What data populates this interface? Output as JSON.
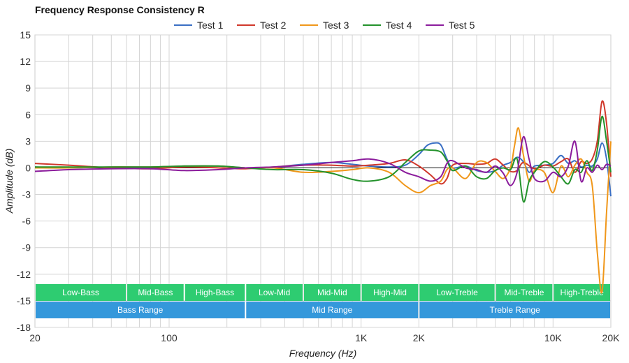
{
  "chart_data": {
    "type": "line",
    "title": "Frequency Response Consistency R",
    "xlabel": "Frequency (Hz)",
    "ylabel": "Amplitude (dB)",
    "x_scale": "log",
    "xlim": [
      20,
      20000
    ],
    "ylim": [
      -18,
      15
    ],
    "x_ticks": [
      {
        "value": 20,
        "label": "20"
      },
      {
        "value": 100,
        "label": "100"
      },
      {
        "value": 1000,
        "label": "1K"
      },
      {
        "value": 2000,
        "label": "2K"
      },
      {
        "value": 10000,
        "label": "10K"
      },
      {
        "value": 20000,
        "label": "20K"
      }
    ],
    "y_ticks": [
      15,
      12,
      9,
      6,
      3,
      0,
      -3,
      -6,
      -9,
      -12,
      -15,
      -18
    ],
    "grid": true,
    "legend_position": "top",
    "ranges_top": [
      {
        "label": "Low-Bass",
        "from": 20,
        "to": 60
      },
      {
        "label": "Mid-Bass",
        "from": 60,
        "to": 120
      },
      {
        "label": "High-Bass",
        "from": 120,
        "to": 250
      },
      {
        "label": "Low-Mid",
        "from": 250,
        "to": 500
      },
      {
        "label": "Mid-Mid",
        "from": 500,
        "to": 1000
      },
      {
        "label": "High-Mid",
        "from": 1000,
        "to": 2000
      },
      {
        "label": "Low-Treble",
        "from": 2000,
        "to": 5000
      },
      {
        "label": "Mid-Treble",
        "from": 5000,
        "to": 10000
      },
      {
        "label": "High-Treble",
        "from": 10000,
        "to": 20000
      }
    ],
    "ranges_bottom": [
      {
        "label": "Bass Range",
        "from": 20,
        "to": 250
      },
      {
        "label": "Mid Range",
        "from": 250,
        "to": 2000
      },
      {
        "label": "Treble Range",
        "from": 2000,
        "to": 20000
      }
    ],
    "series": [
      {
        "name": "Test 1",
        "color": "#3a6fc4",
        "points": [
          [
            20,
            0.1
          ],
          [
            30,
            0.0
          ],
          [
            50,
            0.1
          ],
          [
            80,
            0.1
          ],
          [
            120,
            0.2
          ],
          [
            180,
            0.2
          ],
          [
            250,
            0.0
          ],
          [
            350,
            0.1
          ],
          [
            500,
            0.4
          ],
          [
            700,
            0.6
          ],
          [
            900,
            0.4
          ],
          [
            1100,
            0.2
          ],
          [
            1400,
            0.1
          ],
          [
            1700,
            0.3
          ],
          [
            2000,
            1.5
          ],
          [
            2200,
            2.5
          ],
          [
            2400,
            2.8
          ],
          [
            2600,
            2.6
          ],
          [
            2800,
            1.0
          ],
          [
            3000,
            0.0
          ],
          [
            3500,
            0.2
          ],
          [
            4000,
            -0.3
          ],
          [
            4500,
            -0.5
          ],
          [
            5000,
            -0.3
          ],
          [
            5500,
            0.3
          ],
          [
            6000,
            0.6
          ],
          [
            6500,
            1.2
          ],
          [
            7000,
            0.7
          ],
          [
            7500,
            -0.5
          ],
          [
            8000,
            0.2
          ],
          [
            9000,
            0.3
          ],
          [
            10000,
            0.5
          ],
          [
            11000,
            1.4
          ],
          [
            12000,
            0.5
          ],
          [
            13000,
            0.8
          ],
          [
            14000,
            0.1
          ],
          [
            15000,
            0.3
          ],
          [
            16000,
            0.2
          ],
          [
            17000,
            1.0
          ],
          [
            18000,
            2.8
          ],
          [
            19000,
            1.0
          ],
          [
            20000,
            -3.2
          ]
        ]
      },
      {
        "name": "Test 2",
        "color": "#d0382b",
        "points": [
          [
            20,
            0.5
          ],
          [
            30,
            0.3
          ],
          [
            50,
            0.0
          ],
          [
            80,
            -0.1
          ],
          [
            120,
            0.1
          ],
          [
            180,
            0.0
          ],
          [
            250,
            -0.1
          ],
          [
            350,
            0.1
          ],
          [
            500,
            0.3
          ],
          [
            700,
            0.3
          ],
          [
            900,
            0.2
          ],
          [
            1100,
            0.3
          ],
          [
            1400,
            0.5
          ],
          [
            1700,
            0.9
          ],
          [
            2000,
            0.2
          ],
          [
            2300,
            -0.8
          ],
          [
            2600,
            -1.8
          ],
          [
            2800,
            -1.2
          ],
          [
            3000,
            0.3
          ],
          [
            3500,
            0.5
          ],
          [
            4000,
            0.4
          ],
          [
            4500,
            0.5
          ],
          [
            5000,
            1.0
          ],
          [
            5500,
            0.3
          ],
          [
            6000,
            -0.4
          ],
          [
            6500,
            -0.3
          ],
          [
            7000,
            0.6
          ],
          [
            8000,
            -0.1
          ],
          [
            9000,
            0.3
          ],
          [
            10000,
            0.2
          ],
          [
            11000,
            0.7
          ],
          [
            12000,
            1.0
          ],
          [
            13000,
            -0.5
          ],
          [
            14000,
            0.7
          ],
          [
            15000,
            0.5
          ],
          [
            16000,
            1.0
          ],
          [
            17000,
            3.0
          ],
          [
            18000,
            7.5
          ],
          [
            19000,
            5.0
          ],
          [
            20000,
            -1.0
          ]
        ]
      },
      {
        "name": "Test 3",
        "color": "#f0971a",
        "points": [
          [
            20,
            0.0
          ],
          [
            30,
            0.0
          ],
          [
            50,
            0.1
          ],
          [
            80,
            0.1
          ],
          [
            120,
            0.2
          ],
          [
            180,
            0.2
          ],
          [
            250,
            0.0
          ],
          [
            350,
            0.0
          ],
          [
            500,
            -0.5
          ],
          [
            700,
            -0.4
          ],
          [
            900,
            -0.2
          ],
          [
            1100,
            0.0
          ],
          [
            1400,
            -0.5
          ],
          [
            1700,
            -2.0
          ],
          [
            2000,
            -2.8
          ],
          [
            2300,
            -2.0
          ],
          [
            2600,
            -1.5
          ],
          [
            2800,
            -0.2
          ],
          [
            3000,
            0.0
          ],
          [
            3500,
            -1.2
          ],
          [
            4000,
            0.6
          ],
          [
            4500,
            0.6
          ],
          [
            5000,
            -0.4
          ],
          [
            5500,
            -1.2
          ],
          [
            6000,
            0.0
          ],
          [
            6300,
            2.5
          ],
          [
            6600,
            4.5
          ],
          [
            7000,
            1.5
          ],
          [
            7500,
            -1.5
          ],
          [
            8000,
            -0.3
          ],
          [
            9000,
            -0.5
          ],
          [
            10000,
            -2.8
          ],
          [
            11000,
            0.2
          ],
          [
            12000,
            -1.0
          ],
          [
            13000,
            0.3
          ],
          [
            14000,
            1.0
          ],
          [
            15000,
            -0.5
          ],
          [
            16000,
            -2.0
          ],
          [
            17000,
            -9.5
          ],
          [
            18000,
            -14.0
          ],
          [
            19000,
            -5.0
          ],
          [
            20000,
            3.0
          ]
        ]
      },
      {
        "name": "Test 4",
        "color": "#23922b",
        "points": [
          [
            20,
            0.1
          ],
          [
            30,
            0.1
          ],
          [
            50,
            0.1
          ],
          [
            80,
            0.1
          ],
          [
            120,
            0.2
          ],
          [
            180,
            0.2
          ],
          [
            250,
            0.0
          ],
          [
            350,
            -0.2
          ],
          [
            500,
            -0.2
          ],
          [
            700,
            -0.6
          ],
          [
            900,
            -1.3
          ],
          [
            1100,
            -1.5
          ],
          [
            1400,
            -1.0
          ],
          [
            1700,
            0.6
          ],
          [
            2000,
            1.9
          ],
          [
            2300,
            2.0
          ],
          [
            2600,
            1.8
          ],
          [
            2800,
            0.8
          ],
          [
            3000,
            -0.3
          ],
          [
            3500,
            0.2
          ],
          [
            4000,
            -1.0
          ],
          [
            4500,
            -1.2
          ],
          [
            5000,
            -0.3
          ],
          [
            5500,
            0.0
          ],
          [
            6000,
            -0.2
          ],
          [
            6500,
            1.0
          ],
          [
            7000,
            -3.8
          ],
          [
            7500,
            -1.5
          ],
          [
            8000,
            -0.5
          ],
          [
            9000,
            0.7
          ],
          [
            10000,
            0.1
          ],
          [
            11000,
            -1.0
          ],
          [
            12000,
            -1.8
          ],
          [
            13000,
            -0.2
          ],
          [
            14000,
            -0.5
          ],
          [
            15000,
            0.8
          ],
          [
            16000,
            -0.3
          ],
          [
            17000,
            2.0
          ],
          [
            18000,
            5.8
          ],
          [
            19000,
            3.0
          ],
          [
            20000,
            -0.5
          ]
        ]
      },
      {
        "name": "Test 5",
        "color": "#8b1c9c",
        "points": [
          [
            20,
            -0.4
          ],
          [
            30,
            -0.2
          ],
          [
            50,
            -0.1
          ],
          [
            80,
            -0.1
          ],
          [
            120,
            -0.3
          ],
          [
            180,
            -0.2
          ],
          [
            250,
            0.0
          ],
          [
            350,
            0.1
          ],
          [
            500,
            0.3
          ],
          [
            700,
            0.6
          ],
          [
            900,
            0.8
          ],
          [
            1100,
            1.0
          ],
          [
            1400,
            0.5
          ],
          [
            1700,
            -0.5
          ],
          [
            2000,
            -1.0
          ],
          [
            2300,
            -1.5
          ],
          [
            2600,
            -1.0
          ],
          [
            2800,
            0.5
          ],
          [
            3000,
            0.8
          ],
          [
            3500,
            0.0
          ],
          [
            4000,
            -0.2
          ],
          [
            4500,
            -0.5
          ],
          [
            5000,
            0.2
          ],
          [
            5500,
            -0.6
          ],
          [
            6000,
            -2.0
          ],
          [
            6500,
            -0.5
          ],
          [
            7000,
            3.5
          ],
          [
            7500,
            1.0
          ],
          [
            8000,
            -1.2
          ],
          [
            9000,
            -1.5
          ],
          [
            10000,
            -0.5
          ],
          [
            11000,
            -1.0
          ],
          [
            12000,
            0.2
          ],
          [
            13000,
            3.0
          ],
          [
            14000,
            -1.5
          ],
          [
            15000,
            0.0
          ],
          [
            16000,
            -0.5
          ],
          [
            17000,
            0.3
          ],
          [
            18000,
            -0.2
          ],
          [
            19000,
            0.4
          ],
          [
            20000,
            0.2
          ]
        ]
      }
    ]
  }
}
